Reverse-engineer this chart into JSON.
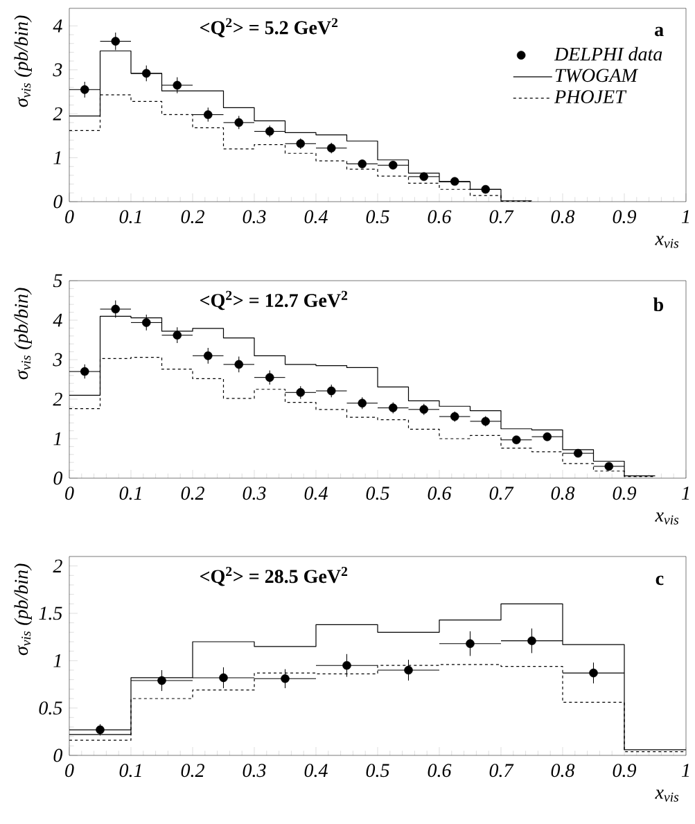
{
  "chart_data": [
    {
      "type": "scatter",
      "title": "<Q$^{2}$> = 5.2 GeV$^{2}$",
      "xlabel": "x$_{vis}$",
      "ylabel": "σ$_{vis}$ (pb/bin)",
      "annotations": [
        "a"
      ],
      "xlim": [
        0,
        1
      ],
      "ylim": [
        0,
        4.4
      ],
      "xticks": [
        0,
        0.1,
        0.2,
        0.3,
        0.4,
        0.5,
        0.6,
        0.7,
        0.8,
        0.9,
        1
      ],
      "yticks": [
        0,
        1,
        2,
        3,
        4
      ],
      "legend": "top right",
      "marker": "circle",
      "series": [
        {
          "name": "DELPHI data",
          "color": "#000000",
          "x": [
            0.025,
            0.075,
            0.125,
            0.175,
            0.225,
            0.275,
            0.325,
            0.375,
            0.425,
            0.475,
            0.525,
            0.575,
            0.625,
            0.675
          ],
          "values": [
            2.55,
            3.65,
            2.92,
            2.65,
            1.98,
            1.8,
            1.6,
            1.32,
            1.22,
            0.86,
            0.83,
            0.57,
            0.46,
            0.28
          ],
          "errors": [
            0.18,
            0.2,
            0.18,
            0.18,
            0.16,
            0.15,
            0.13,
            0.12,
            0.12,
            0.09,
            0.09,
            0.06,
            0.05,
            0.05
          ],
          "xerrors": [
            0.025,
            0.025,
            0.025,
            0.025,
            0.025,
            0.025,
            0.025,
            0.025,
            0.025,
            0.025,
            0.025,
            0.025,
            0.025,
            0.025
          ]
        },
        {
          "name": "TWOGAM",
          "type": "step",
          "color": "#000000",
          "marker": "none",
          "line_style": "solid",
          "x": [
            0,
            0.05,
            0.1,
            0.15,
            0.2,
            0.25,
            0.3,
            0.35,
            0.4,
            0.45,
            0.5,
            0.55,
            0.6,
            0.65,
            0.7,
            0.75
          ],
          "values": [
            1.95,
            3.43,
            2.92,
            2.52,
            2.52,
            2.14,
            1.84,
            1.57,
            1.52,
            1.38,
            0.95,
            0.65,
            0.45,
            0.28,
            0.02,
            0.02
          ]
        },
        {
          "name": "PHOJET",
          "type": "step",
          "color": "#000000",
          "marker": "none",
          "line_style": "dashed",
          "x": [
            0,
            0.05,
            0.1,
            0.15,
            0.2,
            0.25,
            0.3,
            0.35,
            0.4,
            0.45,
            0.5,
            0.55,
            0.6,
            0.65,
            0.7,
            0.75
          ],
          "values": [
            1.62,
            2.43,
            2.28,
            1.98,
            1.68,
            1.2,
            1.3,
            1.1,
            0.93,
            0.74,
            0.58,
            0.42,
            0.28,
            0.14,
            0.01,
            0.01
          ]
        }
      ]
    },
    {
      "type": "scatter",
      "title": "<Q$^{2}$> = 12.7 GeV$^{2}$",
      "xlabel": "x$_{vis}$",
      "ylabel": "σ$_{vis}$ (pb/bin)",
      "annotations": [
        "b"
      ],
      "xlim": [
        0,
        1
      ],
      "ylim": [
        0,
        5
      ],
      "xticks": [
        0,
        0.1,
        0.2,
        0.3,
        0.4,
        0.5,
        0.6,
        0.7,
        0.8,
        0.9,
        1
      ],
      "yticks": [
        0,
        1,
        2,
        3,
        4,
        5
      ],
      "marker": "circle",
      "series": [
        {
          "color": "#000000",
          "x": [
            0.025,
            0.075,
            0.125,
            0.175,
            0.225,
            0.275,
            0.325,
            0.375,
            0.425,
            0.475,
            0.525,
            0.575,
            0.625,
            0.675,
            0.725,
            0.775,
            0.825,
            0.875
          ],
          "values": [
            2.7,
            4.28,
            3.94,
            3.62,
            3.1,
            2.88,
            2.55,
            2.17,
            2.21,
            1.9,
            1.78,
            1.74,
            1.56,
            1.44,
            0.97,
            1.05,
            0.63,
            0.3
          ],
          "errors": [
            0.18,
            0.22,
            0.2,
            0.2,
            0.2,
            0.2,
            0.18,
            0.16,
            0.16,
            0.15,
            0.14,
            0.14,
            0.13,
            0.13,
            0.1,
            0.1,
            0.07,
            0.07
          ],
          "xerrors": [
            0.025,
            0.025,
            0.025,
            0.025,
            0.025,
            0.025,
            0.025,
            0.025,
            0.025,
            0.025,
            0.025,
            0.025,
            0.025,
            0.025,
            0.025,
            0.025,
            0.025,
            0.025
          ]
        },
        {
          "type": "step",
          "color": "#000000",
          "marker": "none",
          "line_style": "solid",
          "x": [
            0,
            0.05,
            0.1,
            0.15,
            0.2,
            0.25,
            0.3,
            0.35,
            0.4,
            0.45,
            0.5,
            0.55,
            0.6,
            0.65,
            0.7,
            0.75,
            0.8,
            0.85,
            0.9,
            0.95
          ],
          "values": [
            2.1,
            4.1,
            4.06,
            3.72,
            3.79,
            3.55,
            3.1,
            2.88,
            2.85,
            2.8,
            2.31,
            1.96,
            1.82,
            1.71,
            1.25,
            1.22,
            0.72,
            0.43,
            0.06,
            0.06
          ]
        },
        {
          "type": "step",
          "color": "#000000",
          "marker": "none",
          "line_style": "dashed",
          "x": [
            0,
            0.05,
            0.1,
            0.15,
            0.2,
            0.25,
            0.3,
            0.35,
            0.4,
            0.45,
            0.5,
            0.55,
            0.6,
            0.65,
            0.7,
            0.75,
            0.8,
            0.85,
            0.9,
            0.95
          ],
          "values": [
            1.76,
            3.03,
            3.06,
            2.76,
            2.52,
            2.02,
            2.25,
            1.92,
            1.74,
            1.54,
            1.48,
            1.24,
            1.0,
            1.08,
            0.76,
            0.67,
            0.37,
            0.18,
            0.04,
            0.04
          ]
        }
      ]
    },
    {
      "type": "scatter",
      "title": "<Q$^{2}$> = 28.5 GeV$^{2}$",
      "xlabel": "x$_{vis}$",
      "ylabel": "σ$_{vis}$ (pb/bin)",
      "annotations": [
        "c"
      ],
      "xlim": [
        0,
        1
      ],
      "ylim": [
        0,
        2.1
      ],
      "xticks": [
        0,
        0.1,
        0.2,
        0.3,
        0.4,
        0.5,
        0.6,
        0.7,
        0.8,
        0.9,
        1
      ],
      "yticks": [
        0,
        0.5,
        1,
        1.5,
        2
      ],
      "marker": "circle",
      "series": [
        {
          "color": "#000000",
          "x": [
            0.05,
            0.15,
            0.25,
            0.35,
            0.45,
            0.55,
            0.65,
            0.75,
            0.85
          ],
          "values": [
            0.27,
            0.79,
            0.82,
            0.81,
            0.95,
            0.9,
            1.18,
            1.21,
            0.87
          ],
          "errors": [
            0.06,
            0.11,
            0.11,
            0.1,
            0.12,
            0.11,
            0.13,
            0.13,
            0.11
          ],
          "xerrors": [
            0.05,
            0.05,
            0.05,
            0.05,
            0.05,
            0.05,
            0.05,
            0.05,
            0.05
          ]
        },
        {
          "type": "step",
          "color": "#000000",
          "marker": "none",
          "line_style": "solid",
          "x": [
            0,
            0.1,
            0.2,
            0.3,
            0.4,
            0.5,
            0.6,
            0.7,
            0.8,
            0.9,
            1
          ],
          "values": [
            0.22,
            0.82,
            1.2,
            1.15,
            1.38,
            1.3,
            1.43,
            1.6,
            1.17,
            0.06,
            0.06
          ]
        },
        {
          "type": "step",
          "color": "#000000",
          "marker": "none",
          "line_style": "dashed",
          "x": [
            0,
            0.1,
            0.2,
            0.3,
            0.4,
            0.5,
            0.6,
            0.7,
            0.8,
            0.9,
            1
          ],
          "values": [
            0.16,
            0.6,
            0.69,
            0.87,
            0.86,
            0.95,
            0.96,
            0.94,
            0.56,
            0.04,
            0.04
          ]
        }
      ]
    }
  ]
}
